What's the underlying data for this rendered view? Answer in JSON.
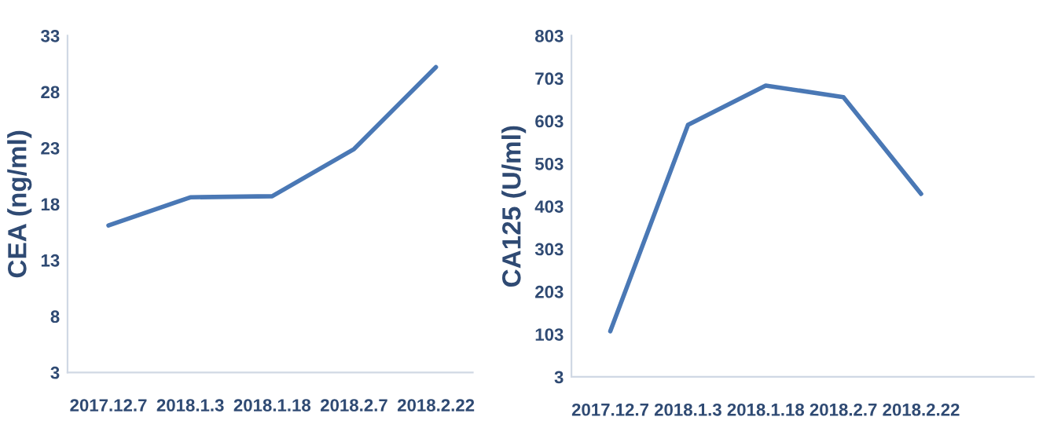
{
  "chart_data": [
    {
      "type": "line",
      "ylabel": "CEA (ng/ml)",
      "categories": [
        "2017.12.7",
        "2018.1.3",
        "2018.1.18",
        "2018.2.7",
        "2018.2.22"
      ],
      "series": [
        {
          "color": "#4a78b5",
          "values": [
            16.1,
            18.6,
            18.7,
            22.9,
            30.2
          ]
        }
      ],
      "ylim": [
        3,
        33
      ],
      "yticks": [
        3,
        8,
        13,
        18,
        23,
        28,
        33
      ],
      "grid": false,
      "legend": false,
      "marker": "none",
      "line_style": "solid"
    },
    {
      "type": "line",
      "ylabel": "CA125 (U/ml)",
      "categories": [
        "2017.12.7",
        "2018.1.3",
        "2018.1.18",
        "2018.2.7",
        "2018.2.22"
      ],
      "series": [
        {
          "color": "#4a78b5",
          "values": [
            110,
            594,
            686,
            659,
            432
          ]
        }
      ],
      "ylim": [
        3,
        803
      ],
      "yticks": [
        3,
        103,
        203,
        303,
        403,
        503,
        603,
        703,
        803
      ],
      "grid": false,
      "legend": false,
      "marker": "none",
      "line_style": "solid"
    }
  ]
}
